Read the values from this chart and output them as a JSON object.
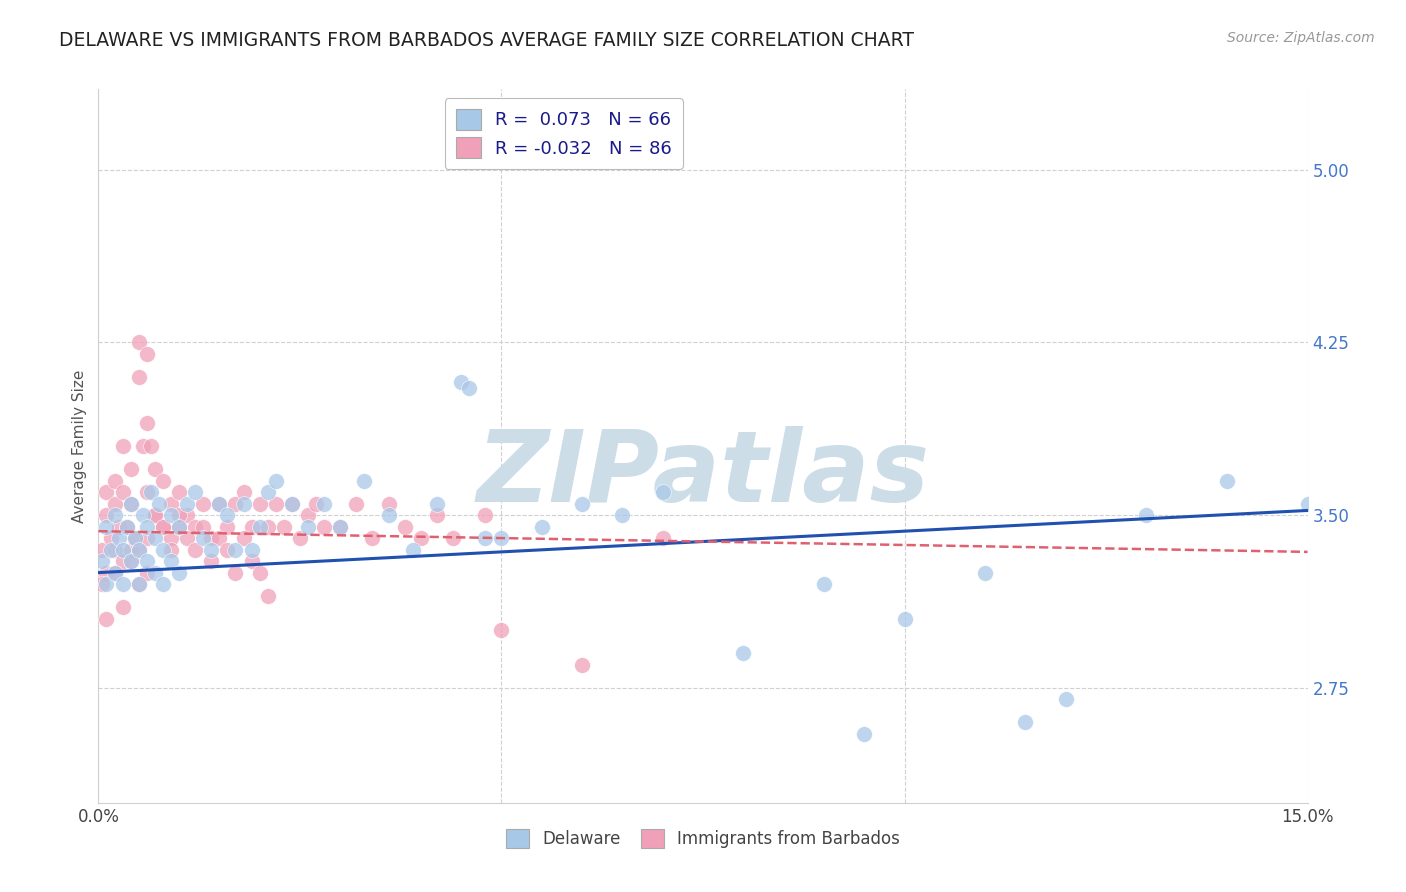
{
  "title": "DELAWARE VS IMMIGRANTS FROM BARBADOS AVERAGE FAMILY SIZE CORRELATION CHART",
  "source": "Source: ZipAtlas.com",
  "ylabel": "Average Family Size",
  "xlim": [
    0.0,
    0.15
  ],
  "ylim": [
    2.25,
    5.35
  ],
  "yticks": [
    2.75,
    3.5,
    4.25,
    5.0
  ],
  "background_color": "#ffffff",
  "grid_color": "#d0d0d0",
  "title_color": "#222222",
  "title_fontsize": 13.5,
  "source_fontsize": 10,
  "axis_label_fontsize": 11,
  "tick_fontsize": 12,
  "blue_color": "#a8c8e8",
  "pink_color": "#f0a0b8",
  "line_blue": "#2050b0",
  "line_pink": "#e06070",
  "watermark_color": "#ccdde8",
  "watermark_fontsize": 72,
  "del_line_x0": 0.0,
  "del_line_y0": 3.25,
  "del_line_x1": 0.15,
  "del_line_y1": 3.52,
  "bar_line_x0": 0.0,
  "bar_line_y0": 3.43,
  "bar_line_x1": 0.15,
  "bar_line_y1": 3.34,
  "del_x": [
    0.0005,
    0.001,
    0.001,
    0.0015,
    0.002,
    0.002,
    0.0025,
    0.003,
    0.003,
    0.0035,
    0.004,
    0.004,
    0.0045,
    0.005,
    0.005,
    0.0055,
    0.006,
    0.006,
    0.0065,
    0.007,
    0.007,
    0.0075,
    0.008,
    0.008,
    0.009,
    0.009,
    0.01,
    0.01,
    0.011,
    0.012,
    0.013,
    0.014,
    0.015,
    0.016,
    0.017,
    0.018,
    0.019,
    0.02,
    0.021,
    0.022,
    0.024,
    0.026,
    0.028,
    0.03,
    0.033,
    0.036,
    0.039,
    0.042,
    0.045,
    0.046,
    0.048,
    0.05,
    0.055,
    0.06,
    0.065,
    0.07,
    0.08,
    0.09,
    0.1,
    0.11,
    0.12,
    0.13,
    0.14,
    0.15,
    0.095,
    0.115
  ],
  "del_y": [
    3.3,
    3.45,
    3.2,
    3.35,
    3.5,
    3.25,
    3.4,
    3.35,
    3.2,
    3.45,
    3.3,
    3.55,
    3.4,
    3.35,
    3.2,
    3.5,
    3.45,
    3.3,
    3.6,
    3.4,
    3.25,
    3.55,
    3.35,
    3.2,
    3.5,
    3.3,
    3.45,
    3.25,
    3.55,
    3.6,
    3.4,
    3.35,
    3.55,
    3.5,
    3.35,
    3.55,
    3.35,
    3.45,
    3.6,
    3.65,
    3.55,
    3.45,
    3.55,
    3.45,
    3.65,
    3.5,
    3.35,
    3.55,
    4.08,
    4.05,
    3.4,
    3.4,
    3.45,
    3.55,
    3.5,
    3.6,
    2.9,
    3.2,
    3.05,
    3.25,
    2.7,
    3.5,
    3.65,
    3.55,
    2.55,
    2.6
  ],
  "bar_x": [
    0.0005,
    0.001,
    0.001,
    0.001,
    0.0015,
    0.002,
    0.002,
    0.002,
    0.0025,
    0.003,
    0.003,
    0.003,
    0.0035,
    0.004,
    0.004,
    0.004,
    0.0045,
    0.005,
    0.005,
    0.0055,
    0.006,
    0.006,
    0.006,
    0.0065,
    0.007,
    0.007,
    0.008,
    0.008,
    0.009,
    0.009,
    0.01,
    0.01,
    0.011,
    0.012,
    0.013,
    0.014,
    0.015,
    0.016,
    0.017,
    0.018,
    0.019,
    0.02,
    0.021,
    0.022,
    0.023,
    0.024,
    0.025,
    0.026,
    0.027,
    0.028,
    0.03,
    0.032,
    0.034,
    0.036,
    0.038,
    0.04,
    0.042,
    0.044,
    0.048,
    0.05,
    0.005,
    0.005,
    0.006,
    0.006,
    0.007,
    0.008,
    0.009,
    0.01,
    0.011,
    0.012,
    0.013,
    0.014,
    0.015,
    0.016,
    0.017,
    0.018,
    0.019,
    0.02,
    0.021,
    0.0005,
    0.001,
    0.002,
    0.003,
    0.004,
    0.06,
    0.07
  ],
  "bar_y": [
    3.35,
    3.5,
    3.25,
    3.6,
    3.4,
    3.55,
    3.35,
    3.65,
    3.45,
    3.3,
    3.6,
    3.8,
    3.45,
    3.55,
    3.35,
    3.7,
    3.4,
    4.25,
    4.1,
    3.8,
    4.2,
    3.9,
    3.6,
    3.8,
    3.7,
    3.5,
    3.65,
    3.45,
    3.4,
    3.55,
    3.45,
    3.6,
    3.5,
    3.45,
    3.55,
    3.4,
    3.55,
    3.45,
    3.55,
    3.6,
    3.45,
    3.55,
    3.45,
    3.55,
    3.45,
    3.55,
    3.4,
    3.5,
    3.55,
    3.45,
    3.45,
    3.55,
    3.4,
    3.55,
    3.45,
    3.4,
    3.5,
    3.4,
    3.5,
    3.0,
    3.2,
    3.35,
    3.25,
    3.4,
    3.5,
    3.45,
    3.35,
    3.5,
    3.4,
    3.35,
    3.45,
    3.3,
    3.4,
    3.35,
    3.25,
    3.4,
    3.3,
    3.25,
    3.15,
    3.2,
    3.05,
    3.25,
    3.1,
    3.3,
    2.85,
    3.4
  ]
}
